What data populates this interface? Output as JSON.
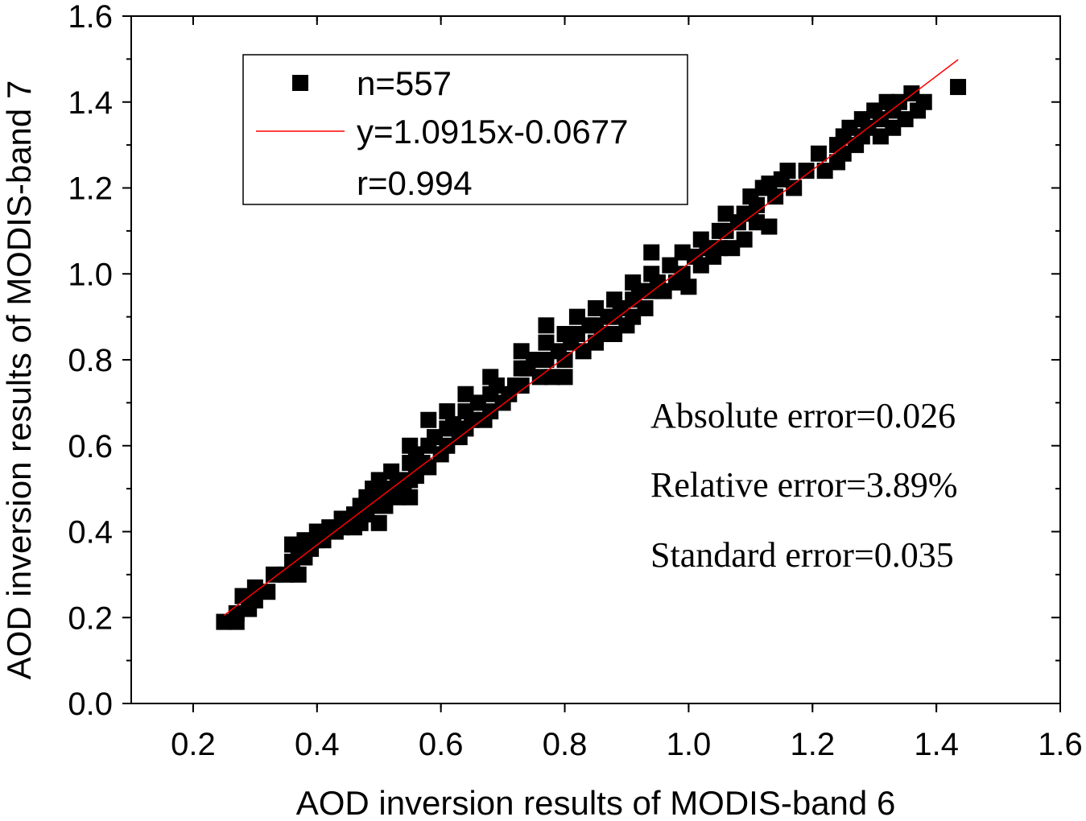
{
  "chart_data": {
    "type": "scatter",
    "title": "",
    "xlabel": "AOD inversion results of MODIS-band 6",
    "ylabel": "AOD inversion results of MODIS-band 7",
    "xlim": [
      0.1,
      1.6
    ],
    "ylim": [
      0.0,
      1.6
    ],
    "x_ticks": [
      "0.2",
      "0.4",
      "0.6",
      "0.8",
      "1.0",
      "1.2",
      "1.4",
      "1.6"
    ],
    "y_ticks": [
      "0.0",
      "0.2",
      "0.4",
      "0.6",
      "0.8",
      "1.0",
      "1.2",
      "1.4",
      "1.6"
    ],
    "legend": {
      "placement": "top-left",
      "points_label": "n=557",
      "fit_label": "y=1.0915x-0.0677",
      "r_label": "r=0.994"
    },
    "fit_line": {
      "slope": 1.0915,
      "intercept": -0.0677,
      "x_range": [
        0.25,
        1.435
      ],
      "color": "#ff0000"
    },
    "annotations": [
      "Absolute error=0.026",
      "Relative error=3.89%",
      "Standard error=0.035"
    ],
    "marker_color": "#000000",
    "series": [
      {
        "name": "n=557",
        "points": [
          [
            0.25,
            0.19
          ],
          [
            0.27,
            0.19
          ],
          [
            0.27,
            0.21
          ],
          [
            0.28,
            0.25
          ],
          [
            0.29,
            0.22
          ],
          [
            0.3,
            0.24
          ],
          [
            0.3,
            0.27
          ],
          [
            0.32,
            0.26
          ],
          [
            0.33,
            0.3
          ],
          [
            0.35,
            0.3
          ],
          [
            0.36,
            0.37
          ],
          [
            0.36,
            0.33
          ],
          [
            0.37,
            0.3
          ],
          [
            0.37,
            0.35
          ],
          [
            0.38,
            0.38
          ],
          [
            0.38,
            0.34
          ],
          [
            0.39,
            0.36
          ],
          [
            0.4,
            0.38
          ],
          [
            0.4,
            0.4
          ],
          [
            0.41,
            0.38
          ],
          [
            0.42,
            0.41
          ],
          [
            0.43,
            0.4
          ],
          [
            0.44,
            0.43
          ],
          [
            0.44,
            0.41
          ],
          [
            0.45,
            0.42
          ],
          [
            0.46,
            0.44
          ],
          [
            0.46,
            0.41
          ],
          [
            0.47,
            0.46
          ],
          [
            0.47,
            0.42
          ],
          [
            0.48,
            0.48
          ],
          [
            0.48,
            0.44
          ],
          [
            0.49,
            0.5
          ],
          [
            0.49,
            0.46
          ],
          [
            0.5,
            0.52
          ],
          [
            0.5,
            0.48
          ],
          [
            0.5,
            0.42
          ],
          [
            0.51,
            0.5
          ],
          [
            0.51,
            0.46
          ],
          [
            0.52,
            0.54
          ],
          [
            0.52,
            0.49
          ],
          [
            0.53,
            0.48
          ],
          [
            0.53,
            0.52
          ],
          [
            0.54,
            0.5
          ],
          [
            0.55,
            0.6
          ],
          [
            0.55,
            0.56
          ],
          [
            0.55,
            0.52
          ],
          [
            0.55,
            0.48
          ],
          [
            0.56,
            0.58
          ],
          [
            0.56,
            0.53
          ],
          [
            0.57,
            0.56
          ],
          [
            0.58,
            0.66
          ],
          [
            0.58,
            0.6
          ],
          [
            0.58,
            0.55
          ],
          [
            0.59,
            0.62
          ],
          [
            0.6,
            0.58
          ],
          [
            0.61,
            0.68
          ],
          [
            0.61,
            0.64
          ],
          [
            0.61,
            0.6
          ],
          [
            0.62,
            0.65
          ],
          [
            0.63,
            0.62
          ],
          [
            0.64,
            0.72
          ],
          [
            0.64,
            0.68
          ],
          [
            0.64,
            0.64
          ],
          [
            0.65,
            0.66
          ],
          [
            0.66,
            0.7
          ],
          [
            0.67,
            0.66
          ],
          [
            0.68,
            0.76
          ],
          [
            0.68,
            0.72
          ],
          [
            0.68,
            0.68
          ],
          [
            0.69,
            0.74
          ],
          [
            0.7,
            0.7
          ],
          [
            0.71,
            0.72
          ],
          [
            0.72,
            0.74
          ],
          [
            0.73,
            0.82
          ],
          [
            0.73,
            0.78
          ],
          [
            0.73,
            0.74
          ],
          [
            0.74,
            0.78
          ],
          [
            0.75,
            0.8
          ],
          [
            0.76,
            0.76
          ],
          [
            0.76,
            0.8
          ],
          [
            0.77,
            0.88
          ],
          [
            0.77,
            0.84
          ],
          [
            0.77,
            0.8
          ],
          [
            0.78,
            0.76
          ],
          [
            0.79,
            0.82
          ],
          [
            0.8,
            0.86
          ],
          [
            0.8,
            0.8
          ],
          [
            0.8,
            0.76
          ],
          [
            0.81,
            0.84
          ],
          [
            0.82,
            0.9
          ],
          [
            0.82,
            0.86
          ],
          [
            0.83,
            0.82
          ],
          [
            0.84,
            0.88
          ],
          [
            0.85,
            0.92
          ],
          [
            0.85,
            0.88
          ],
          [
            0.85,
            0.84
          ],
          [
            0.86,
            0.86
          ],
          [
            0.87,
            0.9
          ],
          [
            0.88,
            0.94
          ],
          [
            0.88,
            0.9
          ],
          [
            0.88,
            0.86
          ],
          [
            0.89,
            0.92
          ],
          [
            0.9,
            0.88
          ],
          [
            0.91,
            0.98
          ],
          [
            0.91,
            0.94
          ],
          [
            0.91,
            0.9
          ],
          [
            0.92,
            0.96
          ],
          [
            0.93,
            0.92
          ],
          [
            0.94,
            1.05
          ],
          [
            0.94,
            1.0
          ],
          [
            0.94,
            0.96
          ],
          [
            0.95,
            0.98
          ],
          [
            0.96,
            0.96
          ],
          [
            0.97,
            1.02
          ],
          [
            0.98,
            0.98
          ],
          [
            0.99,
            1.05
          ],
          [
            0.99,
            1.0
          ],
          [
            1.0,
            0.97
          ],
          [
            1.01,
            1.04
          ],
          [
            1.02,
            1.08
          ],
          [
            1.02,
            1.02
          ],
          [
            1.03,
            1.06
          ],
          [
            1.04,
            1.04
          ],
          [
            1.05,
            1.1
          ],
          [
            1.05,
            1.06
          ],
          [
            1.06,
            1.14
          ],
          [
            1.06,
            1.1
          ],
          [
            1.07,
            1.06
          ],
          [
            1.08,
            1.12
          ],
          [
            1.09,
            1.14
          ],
          [
            1.09,
            1.08
          ],
          [
            1.1,
            1.18
          ],
          [
            1.1,
            1.14
          ],
          [
            1.11,
            1.12
          ],
          [
            1.11,
            1.16
          ],
          [
            1.12,
            1.2
          ],
          [
            1.13,
            1.21
          ],
          [
            1.13,
            1.11
          ],
          [
            1.14,
            1.18
          ],
          [
            1.15,
            1.22
          ],
          [
            1.16,
            1.24
          ],
          [
            1.17,
            1.2
          ],
          [
            1.19,
            1.24
          ],
          [
            1.21,
            1.28
          ],
          [
            1.22,
            1.24
          ],
          [
            1.24,
            1.3
          ],
          [
            1.24,
            1.26
          ],
          [
            1.25,
            1.32
          ],
          [
            1.25,
            1.28
          ],
          [
            1.26,
            1.34
          ],
          [
            1.27,
            1.3
          ],
          [
            1.28,
            1.36
          ],
          [
            1.28,
            1.32
          ],
          [
            1.29,
            1.34
          ],
          [
            1.3,
            1.38
          ],
          [
            1.31,
            1.32
          ],
          [
            1.31,
            1.36
          ],
          [
            1.32,
            1.4
          ],
          [
            1.33,
            1.34
          ],
          [
            1.33,
            1.38
          ],
          [
            1.34,
            1.4
          ],
          [
            1.35,
            1.36
          ],
          [
            1.36,
            1.42
          ],
          [
            1.37,
            1.38
          ],
          [
            1.38,
            1.4
          ],
          [
            1.435,
            1.435
          ]
        ]
      }
    ]
  }
}
